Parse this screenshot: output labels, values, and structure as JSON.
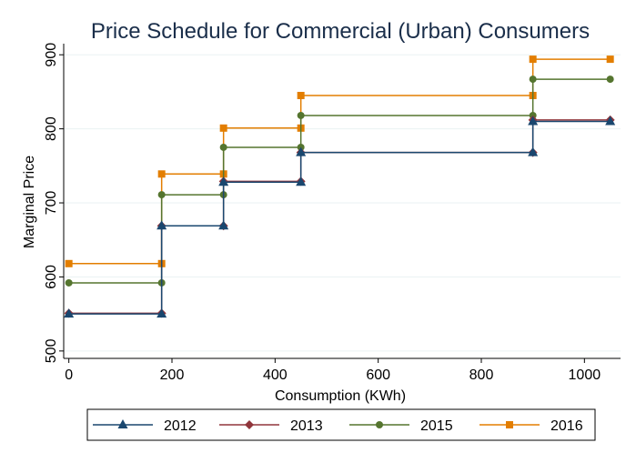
{
  "chart_data": {
    "type": "line",
    "step": true,
    "title": "Price Schedule for Commercial (Urban) Consumers",
    "xlabel": "Consumption (KWh)",
    "ylabel": "Marginal Price",
    "xlim": [
      -10,
      1070
    ],
    "ylim": [
      490,
      915
    ],
    "xticks": [
      0,
      200,
      400,
      600,
      800,
      1000
    ],
    "yticks": [
      500,
      600,
      700,
      800,
      900
    ],
    "grid": true,
    "legend": "bottom",
    "series": [
      {
        "name": "2012",
        "color": "#1a476f",
        "marker": "triangle",
        "points": [
          [
            0,
            550
          ],
          [
            180,
            550
          ],
          [
            180,
            669
          ],
          [
            300,
            669
          ],
          [
            300,
            728
          ],
          [
            450,
            728
          ],
          [
            450,
            768
          ],
          [
            900,
            768
          ],
          [
            900,
            810
          ],
          [
            1050,
            810
          ]
        ]
      },
      {
        "name": "2013",
        "color": "#90353b",
        "marker": "diamond",
        "points": [
          [
            0,
            551
          ],
          [
            180,
            551
          ],
          [
            180,
            669
          ],
          [
            300,
            669
          ],
          [
            300,
            729
          ],
          [
            450,
            729
          ],
          [
            450,
            768
          ],
          [
            900,
            768
          ],
          [
            900,
            812
          ],
          [
            1050,
            812
          ]
        ]
      },
      {
        "name": "2015",
        "color": "#55752f",
        "marker": "circle",
        "points": [
          [
            0,
            592
          ],
          [
            180,
            592
          ],
          [
            180,
            711
          ],
          [
            300,
            711
          ],
          [
            300,
            775
          ],
          [
            450,
            775
          ],
          [
            450,
            818
          ],
          [
            900,
            818
          ],
          [
            900,
            867
          ],
          [
            1050,
            867
          ]
        ]
      },
      {
        "name": "2016",
        "color": "#e37e00",
        "marker": "square",
        "points": [
          [
            0,
            618
          ],
          [
            180,
            618
          ],
          [
            180,
            739
          ],
          [
            300,
            739
          ],
          [
            300,
            801
          ],
          [
            450,
            801
          ],
          [
            450,
            845
          ],
          [
            900,
            845
          ],
          [
            900,
            894
          ],
          [
            1050,
            894
          ]
        ]
      }
    ]
  }
}
